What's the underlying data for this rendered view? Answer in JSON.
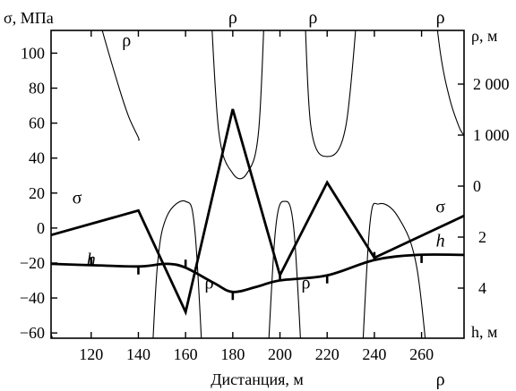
{
  "chart_data": {
    "type": "line",
    "xlabel": "Дистанция, м",
    "x_ticks": [
      120,
      140,
      160,
      180,
      200,
      220,
      240,
      260
    ],
    "xlim": [
      103,
      278
    ],
    "left_axis": {
      "title": "σ, МПа",
      "range": [
        -63,
        113
      ],
      "tick_values": [
        100,
        80,
        60,
        40,
        20,
        0,
        -20,
        -40,
        -60
      ],
      "tick_labels": [
        "100",
        "80",
        "60",
        "40",
        "20",
        "0",
        "−20",
        "−40",
        "−60"
      ]
    },
    "right_axis_rho": {
      "title": "ρ, м",
      "tick_values": [
        2000,
        1000,
        0
      ],
      "tick_labels": [
        "2 000",
        "1 000",
        "0"
      ]
    },
    "right_axis_h": {
      "title": "h, м",
      "range": [
        0,
        5.4
      ],
      "tick_values": [
        2,
        4
      ],
      "tick_labels": [
        "2",
        "4"
      ]
    },
    "series": [
      {
        "name": "σ",
        "axis": "left",
        "style": "thick",
        "x": [
          103,
          140,
          160,
          180,
          200,
          220,
          240,
          278
        ],
        "y": [
          -4,
          10,
          -48,
          68,
          -27,
          26,
          -17,
          7
        ]
      },
      {
        "name": "h",
        "axis": "h",
        "style": "thick",
        "x": [
          103,
          120,
          140,
          152,
          160,
          172,
          180,
          190,
          200,
          220,
          240,
          258,
          278
        ],
        "y": [
          3.05,
          3.1,
          3.15,
          3.05,
          3.2,
          3.8,
          4.15,
          3.95,
          3.7,
          3.5,
          2.9,
          2.7,
          2.7
        ],
        "marker_x": [
          120,
          140,
          160,
          180,
          200,
          220,
          240,
          260
        ]
      },
      {
        "name": "ρ",
        "axis": "rho",
        "style": "thin",
        "singular_points": [
          103,
          145,
          168,
          194,
          210,
          234,
          264
        ],
        "branch_curves": [
          {
            "x": [
              103,
              105,
              107,
              111
            ],
            "y": [
              -2900,
              -3200,
              -3600,
              -4200
            ]
          },
          {
            "x": [
              118,
              125,
              132,
              136,
              140,
              140
            ],
            "y": [
              4200,
              3000,
              1900,
              1350,
              950,
              900
            ]
          },
          {
            "x": [
              145,
              148,
              152,
              160,
              164,
              168
            ],
            "y": [
              -4200,
              -1600,
              -600,
              -300,
              -900,
              -4200
            ]
          },
          {
            "x": [
              170,
              174,
              180,
              186,
              191,
              194
            ],
            "y": [
              4200,
              1100,
              250,
              250,
              1100,
              4200
            ]
          },
          {
            "x": [
              194,
              198,
              202,
              206,
              210
            ],
            "y": [
              -4200,
              -900,
              -300,
              -900,
              -4200
            ]
          },
          {
            "x": [
              210,
              213,
              220,
              228,
              234
            ],
            "y": [
              4200,
              1200,
              580,
              1200,
              4200
            ]
          },
          {
            "x": [
              234,
              238,
              242,
              250,
              258,
              264
            ],
            "y": [
              -4200,
              -800,
              -350,
              -600,
              -1600,
              -4200
            ]
          },
          {
            "x": [
              264,
              268,
              272,
              276,
              278
            ],
            "y": [
              4200,
              2600,
              1700,
              1150,
              1000
            ]
          }
        ],
        "labels": [
          {
            "text": "ρ",
            "x": 135,
            "y": 2850
          },
          {
            "text": "ρ",
            "x": 180,
            "y": 3300
          },
          {
            "text": "ρ",
            "x": 214,
            "y": 3300
          },
          {
            "text": "ρ",
            "x": 268,
            "y": 3300
          },
          {
            "text": "ρ",
            "x": 170,
            "y": -1900
          },
          {
            "text": "ρ",
            "x": 211,
            "y": -1900
          },
          {
            "text": "ρ",
            "x": 268,
            "y": -3800
          }
        ]
      }
    ],
    "series_labels": [
      {
        "text": "σ",
        "x": 114,
        "y": 17,
        "axis": "left"
      },
      {
        "text": "σ",
        "x": 268,
        "y": 12,
        "axis": "left"
      },
      {
        "text": "h",
        "x": 120,
        "y": 2.9,
        "axis": "h"
      },
      {
        "text": "h",
        "x": 268,
        "y": 2.15,
        "axis": "h"
      }
    ],
    "grid": false
  }
}
